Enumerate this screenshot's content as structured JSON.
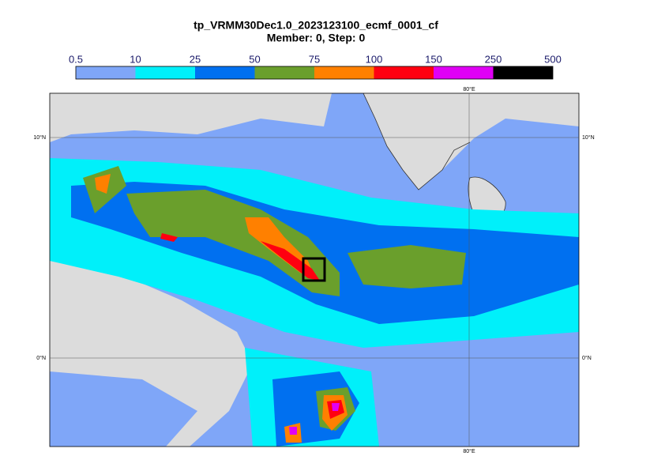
{
  "header": {
    "title": "tp_VRMM30Dec1.0_2023123100_ecmf_0001_cf",
    "subtitle": "Member: 0, Step: 0"
  },
  "legend": {
    "ticks": [
      0.5,
      10,
      25,
      50,
      75,
      100,
      150,
      250,
      500
    ],
    "colors": [
      "#7fa6f8",
      "#00f0fa",
      "#0070f0",
      "#6a9f2c",
      "#ff8000",
      "#ff0010",
      "#e000f5",
      "#000000"
    ]
  },
  "map": {
    "lat_labels": [
      "10°N",
      "0°N"
    ],
    "lon_labels": [
      "80°E"
    ]
  }
}
